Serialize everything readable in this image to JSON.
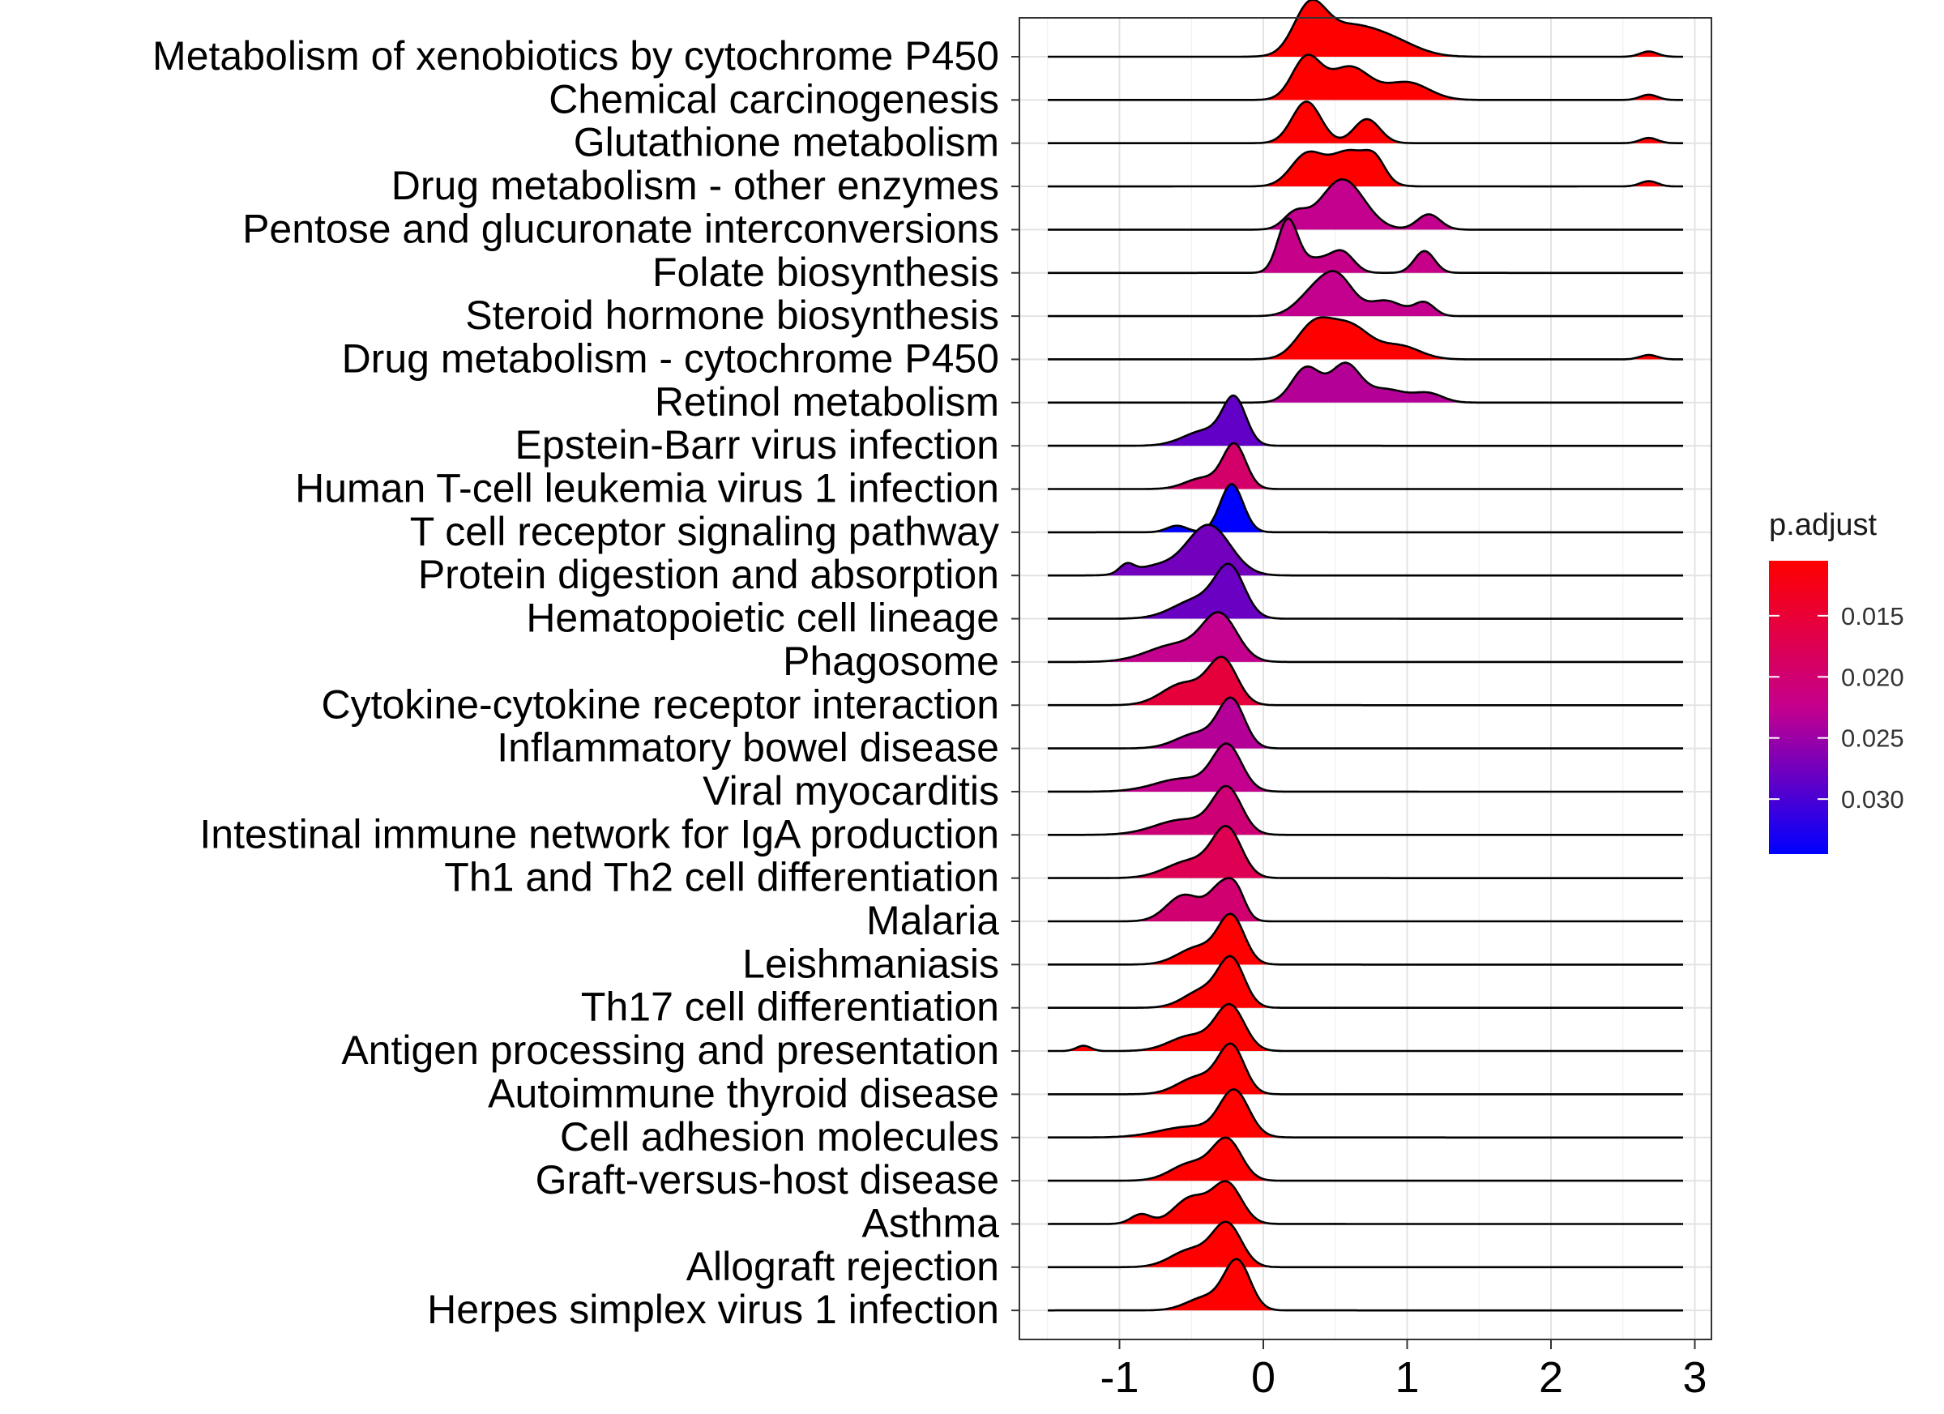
{
  "chart_data": {
    "type": "ridgeline",
    "x_ticks": [
      "-1",
      "0",
      "1",
      "2",
      "3"
    ],
    "xlim": [
      -1.73,
      3.12
    ],
    "legend": {
      "title": "p.adjust",
      "ticks": [
        "0.015",
        "0.020",
        "0.025",
        "0.030"
      ],
      "range": [
        0.0105,
        0.0345
      ],
      "colors": [
        "#ff0000",
        "#0000ff"
      ],
      "position": "right"
    },
    "rows": [
      {
        "label": "Metabolism of xenobiotics by cytochrome P450",
        "p_adjust": 0.0105,
        "range": [
          0.1,
          1.3
        ],
        "peaks": [
          [
            0.32,
            1.0,
            0.11
          ],
          [
            0.58,
            0.65,
            0.2
          ],
          [
            0.9,
            0.3,
            0.18
          ],
          [
            2.68,
            0.12,
            0.06
          ]
        ]
      },
      {
        "label": "Chemical carcinogenesis",
        "p_adjust": 0.0105,
        "range": [
          0.1,
          1.3
        ],
        "peaks": [
          [
            0.3,
            0.95,
            0.1
          ],
          [
            0.6,
            0.75,
            0.14
          ],
          [
            1.0,
            0.4,
            0.15
          ],
          [
            2.68,
            0.12,
            0.06
          ]
        ]
      },
      {
        "label": "Glutathione metabolism",
        "p_adjust": 0.0105,
        "range": [
          0.1,
          0.95
        ],
        "peaks": [
          [
            0.3,
            0.95,
            0.1
          ],
          [
            0.72,
            0.55,
            0.09
          ],
          [
            2.68,
            0.12,
            0.06
          ]
        ]
      },
      {
        "label": "Drug metabolism - other enzymes",
        "p_adjust": 0.0105,
        "range": [
          0.1,
          1.0
        ],
        "peaks": [
          [
            0.3,
            0.7,
            0.11
          ],
          [
            0.6,
            0.8,
            0.14
          ],
          [
            0.78,
            0.4,
            0.07
          ],
          [
            2.68,
            0.12,
            0.06
          ]
        ]
      },
      {
        "label": "Pentose and glucuronate interconversions",
        "p_adjust": 0.0225,
        "range": [
          0.1,
          1.35
        ],
        "peaks": [
          [
            0.55,
            1.15,
            0.15
          ],
          [
            0.22,
            0.35,
            0.08
          ],
          [
            1.15,
            0.35,
            0.08
          ]
        ]
      },
      {
        "label": "Folate biosynthesis",
        "p_adjust": 0.022,
        "range": [
          -0.05,
          1.3
        ],
        "peaks": [
          [
            0.17,
            1.2,
            0.07
          ],
          [
            0.55,
            0.45,
            0.08
          ],
          [
            1.12,
            0.5,
            0.07
          ],
          [
            0.37,
            0.3,
            0.1
          ]
        ]
      },
      {
        "label": "Steroid hormone biosynthesis",
        "p_adjust": 0.0225,
        "range": [
          0.1,
          1.3
        ],
        "peaks": [
          [
            0.35,
            0.5,
            0.12
          ],
          [
            0.52,
            0.8,
            0.11
          ],
          [
            0.85,
            0.35,
            0.12
          ],
          [
            1.12,
            0.3,
            0.07
          ]
        ]
      },
      {
        "label": "Drug metabolism - cytochrome P450",
        "p_adjust": 0.0105,
        "range": [
          0.1,
          1.3
        ],
        "peaks": [
          [
            0.35,
            0.75,
            0.12
          ],
          [
            0.6,
            0.75,
            0.14
          ],
          [
            0.95,
            0.3,
            0.14
          ],
          [
            2.68,
            0.1,
            0.06
          ]
        ]
      },
      {
        "label": "Retinol metabolism",
        "p_adjust": 0.0235,
        "range": [
          0.1,
          1.3
        ],
        "peaks": [
          [
            0.3,
            0.8,
            0.1
          ],
          [
            0.57,
            0.85,
            0.1
          ],
          [
            0.85,
            0.3,
            0.14
          ],
          [
            1.15,
            0.2,
            0.1
          ]
        ]
      },
      {
        "label": "Epstein-Barr virus infection",
        "p_adjust": 0.0285,
        "range": [
          -0.85,
          0.05
        ],
        "peaks": [
          [
            -0.2,
            1.0,
            0.08
          ],
          [
            -0.4,
            0.35,
            0.15
          ]
        ]
      },
      {
        "label": "Human T-cell leukemia virus 1 infection",
        "p_adjust": 0.0195,
        "range": [
          -0.7,
          0.0
        ],
        "peaks": [
          [
            -0.2,
            1.0,
            0.08
          ],
          [
            -0.42,
            0.25,
            0.12
          ]
        ]
      },
      {
        "label": "T cell receptor signaling pathway",
        "p_adjust": 0.0345,
        "range": [
          -0.75,
          0.05
        ],
        "peaks": [
          [
            -0.22,
            1.1,
            0.08
          ],
          [
            -0.6,
            0.15,
            0.07
          ]
        ]
      },
      {
        "label": "Protein digestion and absorption",
        "p_adjust": 0.0275,
        "range": [
          -1.55,
          -0.1
        ],
        "peaks": [
          [
            -0.38,
            1.15,
            0.15
          ],
          [
            -0.95,
            0.2,
            0.05
          ],
          [
            -0.75,
            0.2,
            0.15
          ]
        ]
      },
      {
        "label": "Hematopoietic cell lineage",
        "p_adjust": 0.028,
        "range": [
          -0.8,
          0.0
        ],
        "peaks": [
          [
            -0.23,
            1.05,
            0.1
          ],
          [
            -0.45,
            0.45,
            0.17
          ]
        ]
      },
      {
        "label": "Phagosome",
        "p_adjust": 0.0225,
        "range": [
          -1.0,
          0.0
        ],
        "peaks": [
          [
            -0.3,
            1.0,
            0.12
          ],
          [
            -0.6,
            0.4,
            0.2
          ]
        ]
      },
      {
        "label": "Cytokine-cytokine receptor interaction",
        "p_adjust": 0.0155,
        "range": [
          -0.9,
          0.0
        ],
        "peaks": [
          [
            -0.28,
            1.0,
            0.1
          ],
          [
            -0.55,
            0.5,
            0.15
          ]
        ]
      },
      {
        "label": "Inflammatory bowel disease",
        "p_adjust": 0.0235,
        "range": [
          -0.75,
          0.05
        ],
        "peaks": [
          [
            -0.22,
            1.05,
            0.09
          ],
          [
            -0.45,
            0.35,
            0.15
          ]
        ]
      },
      {
        "label": "Viral myocarditis",
        "p_adjust": 0.0225,
        "range": [
          -0.9,
          0.05
        ],
        "peaks": [
          [
            -0.25,
            1.0,
            0.1
          ],
          [
            -0.55,
            0.3,
            0.2
          ]
        ]
      },
      {
        "label": "Intestinal immune network for IgA production",
        "p_adjust": 0.0205,
        "range": [
          -0.9,
          0.05
        ],
        "peaks": [
          [
            -0.25,
            1.0,
            0.1
          ],
          [
            -0.55,
            0.35,
            0.2
          ]
        ]
      },
      {
        "label": "Th1 and Th2 cell differentiation",
        "p_adjust": 0.0175,
        "range": [
          -0.85,
          0.05
        ],
        "peaks": [
          [
            -0.25,
            1.05,
            0.1
          ],
          [
            -0.5,
            0.4,
            0.17
          ]
        ]
      },
      {
        "label": "Malaria",
        "p_adjust": 0.02,
        "range": [
          -0.85,
          0.0
        ],
        "peaks": [
          [
            -0.28,
            0.8,
            0.09
          ],
          [
            -0.55,
            0.6,
            0.12
          ],
          [
            -0.18,
            0.4,
            0.06
          ]
        ]
      },
      {
        "label": "Leishmaniasis",
        "p_adjust": 0.0105,
        "range": [
          -0.75,
          0.0
        ],
        "peaks": [
          [
            -0.22,
            1.05,
            0.09
          ],
          [
            -0.45,
            0.4,
            0.14
          ]
        ]
      },
      {
        "label": "Th17 cell differentiation",
        "p_adjust": 0.0105,
        "range": [
          -0.65,
          0.0
        ],
        "peaks": [
          [
            -0.22,
            1.05,
            0.09
          ],
          [
            -0.42,
            0.4,
            0.13
          ]
        ]
      },
      {
        "label": "Antigen processing and presentation",
        "p_adjust": 0.0105,
        "range": [
          -1.45,
          0.0
        ],
        "peaks": [
          [
            -0.23,
            1.0,
            0.1
          ],
          [
            -0.5,
            0.35,
            0.15
          ],
          [
            -1.25,
            0.12,
            0.05
          ]
        ]
      },
      {
        "label": "Autoimmune thyroid disease",
        "p_adjust": 0.0105,
        "range": [
          -0.7,
          0.05
        ],
        "peaks": [
          [
            -0.22,
            1.05,
            0.09
          ],
          [
            -0.45,
            0.4,
            0.14
          ]
        ]
      },
      {
        "label": "Cell adhesion molecules",
        "p_adjust": 0.0105,
        "range": [
          -0.95,
          0.05
        ],
        "peaks": [
          [
            -0.2,
            1.0,
            0.1
          ],
          [
            -0.5,
            0.25,
            0.22
          ]
        ]
      },
      {
        "label": "Graft-versus-host disease",
        "p_adjust": 0.0105,
        "range": [
          -0.75,
          0.05
        ],
        "peaks": [
          [
            -0.25,
            0.9,
            0.1
          ],
          [
            -0.5,
            0.4,
            0.14
          ]
        ]
      },
      {
        "label": "Asthma",
        "p_adjust": 0.0105,
        "range": [
          -1.0,
          0.0
        ],
        "peaks": [
          [
            -0.25,
            0.9,
            0.1
          ],
          [
            -0.5,
            0.6,
            0.12
          ],
          [
            -0.85,
            0.22,
            0.07
          ]
        ]
      },
      {
        "label": "Allograft rejection",
        "p_adjust": 0.0105,
        "range": [
          -0.75,
          0.05
        ],
        "peaks": [
          [
            -0.25,
            0.95,
            0.1
          ],
          [
            -0.5,
            0.4,
            0.14
          ]
        ]
      },
      {
        "label": "Herpes simplex virus 1 infection",
        "p_adjust": 0.0105,
        "range": [
          -0.8,
          0.0
        ],
        "peaks": [
          [
            -0.18,
            1.1,
            0.09
          ],
          [
            -0.4,
            0.3,
            0.13
          ]
        ]
      }
    ]
  }
}
